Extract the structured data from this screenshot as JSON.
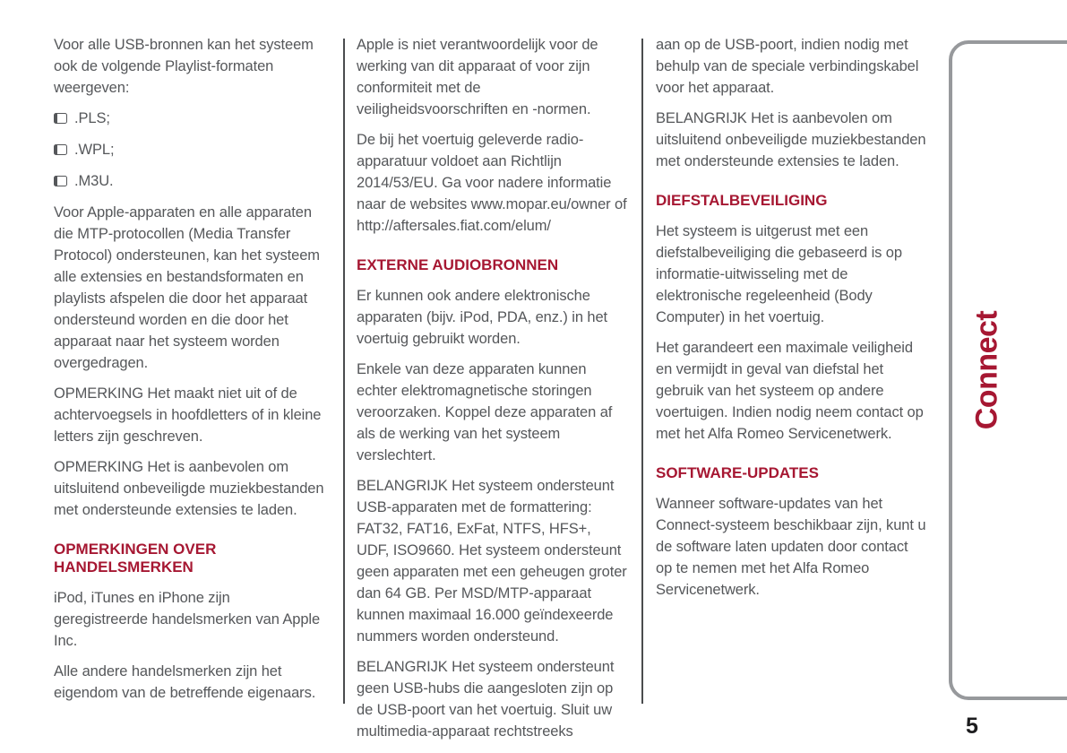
{
  "page": {
    "tab_label": "Connect",
    "number": "5",
    "accent_color": "#a61732",
    "body_text_color": "#55575a"
  },
  "columns": [
    {
      "blocks": [
        {
          "type": "paragraph",
          "text": "Voor alle USB-bronnen kan het systeem ook de volgende Playlist-formaten weergeven:"
        },
        {
          "type": "list",
          "items": [
            ".PLS;",
            ".WPL;",
            ".M3U."
          ]
        },
        {
          "type": "paragraph",
          "text": "Voor Apple-apparaten en alle apparaten die MTP-protocollen (Media Transfer Protocol) ondersteunen, kan het systeem alle extensies en bestandsformaten en playlists afspelen die door het apparaat ondersteund worden en die door het apparaat naar het systeem worden overgedragen."
        },
        {
          "type": "paragraph",
          "text": "OPMERKING Het maakt niet uit of de achtervoegsels in hoofdletters of in kleine letters zijn geschreven."
        },
        {
          "type": "paragraph",
          "text": "OPMERKING Het is aanbevolen om uitsluitend onbeveiligde muziekbestanden met ondersteunde extensies te laden."
        },
        {
          "type": "heading",
          "text": "OPMERKINGEN OVER HANDELSMERKEN"
        },
        {
          "type": "paragraph",
          "text": "iPod, iTunes en iPhone zijn geregistreerde handelsmerken van Apple Inc."
        },
        {
          "type": "paragraph",
          "text": "Alle andere handelsmerken zijn het eigendom van de betreffende eigenaars."
        }
      ]
    },
    {
      "blocks": [
        {
          "type": "paragraph",
          "text": "Apple is niet verantwoordelijk voor de werking van dit apparaat of voor zijn conformiteit met de veiligheidsvoorschriften en -normen."
        },
        {
          "type": "paragraph",
          "text": "De bij het voertuig geleverde radio-apparatuur voldoet aan Richtlijn 2014/53/EU. Ga voor nadere informatie naar de websites www.mopar.eu/owner of http://aftersales.fiat.com/elum/"
        },
        {
          "type": "heading",
          "text": "EXTERNE AUDIOBRONNEN"
        },
        {
          "type": "paragraph",
          "text": "Er kunnen ook andere elektronische apparaten (bijv. iPod, PDA, enz.) in het voertuig gebruikt worden."
        },
        {
          "type": "paragraph",
          "text": "Enkele van deze apparaten kunnen echter elektromagnetische storingen veroorzaken. Koppel deze apparaten af als de werking van het systeem verslechtert."
        },
        {
          "type": "paragraph",
          "text": "BELANGRIJK Het systeem ondersteunt USB-apparaten met de formattering: FAT32, FAT16, ExFat, NTFS, HFS+, UDF, ISO9660. Het systeem ondersteunt geen apparaten met een geheugen groter dan 64 GB. Per MSD/MTP-apparaat kunnen maximaal 16.000 geïndexeerde nummers worden ondersteund."
        },
        {
          "type": "paragraph",
          "text": "BELANGRIJK Het systeem ondersteunt geen USB-hubs die aangesloten zijn op de USB-poort van het voertuig. Sluit uw multimedia-apparaat rechtstreeks"
        }
      ]
    },
    {
      "blocks": [
        {
          "type": "paragraph",
          "text": "aan op de USB-poort, indien nodig met behulp van de speciale verbindingskabel voor het apparaat."
        },
        {
          "type": "paragraph",
          "text": "BELANGRIJK Het is aanbevolen om uitsluitend onbeveiligde muziekbestanden met ondersteunde extensies te laden."
        },
        {
          "type": "heading",
          "text": "DIEFSTALBEVEILIGING"
        },
        {
          "type": "paragraph",
          "text": "Het systeem is uitgerust met een diefstalbeveiliging die gebaseerd is op informatie-uitwisseling met de elektronische regeleenheid (Body Computer) in het voertuig."
        },
        {
          "type": "paragraph",
          "text": "Het garandeert een maximale veiligheid en vermijdt in geval van diefstal het gebruik van het systeem op andere voertuigen. Indien nodig neem contact op met het Alfa Romeo Servicenetwerk."
        },
        {
          "type": "heading",
          "text": "SOFTWARE-UPDATES"
        },
        {
          "type": "paragraph",
          "text": "Wanneer software-updates van het Connect-systeem beschikbaar zijn, kunt u de software laten updaten door contact op te nemen met het Alfa Romeo Servicenetwerk."
        }
      ]
    }
  ]
}
